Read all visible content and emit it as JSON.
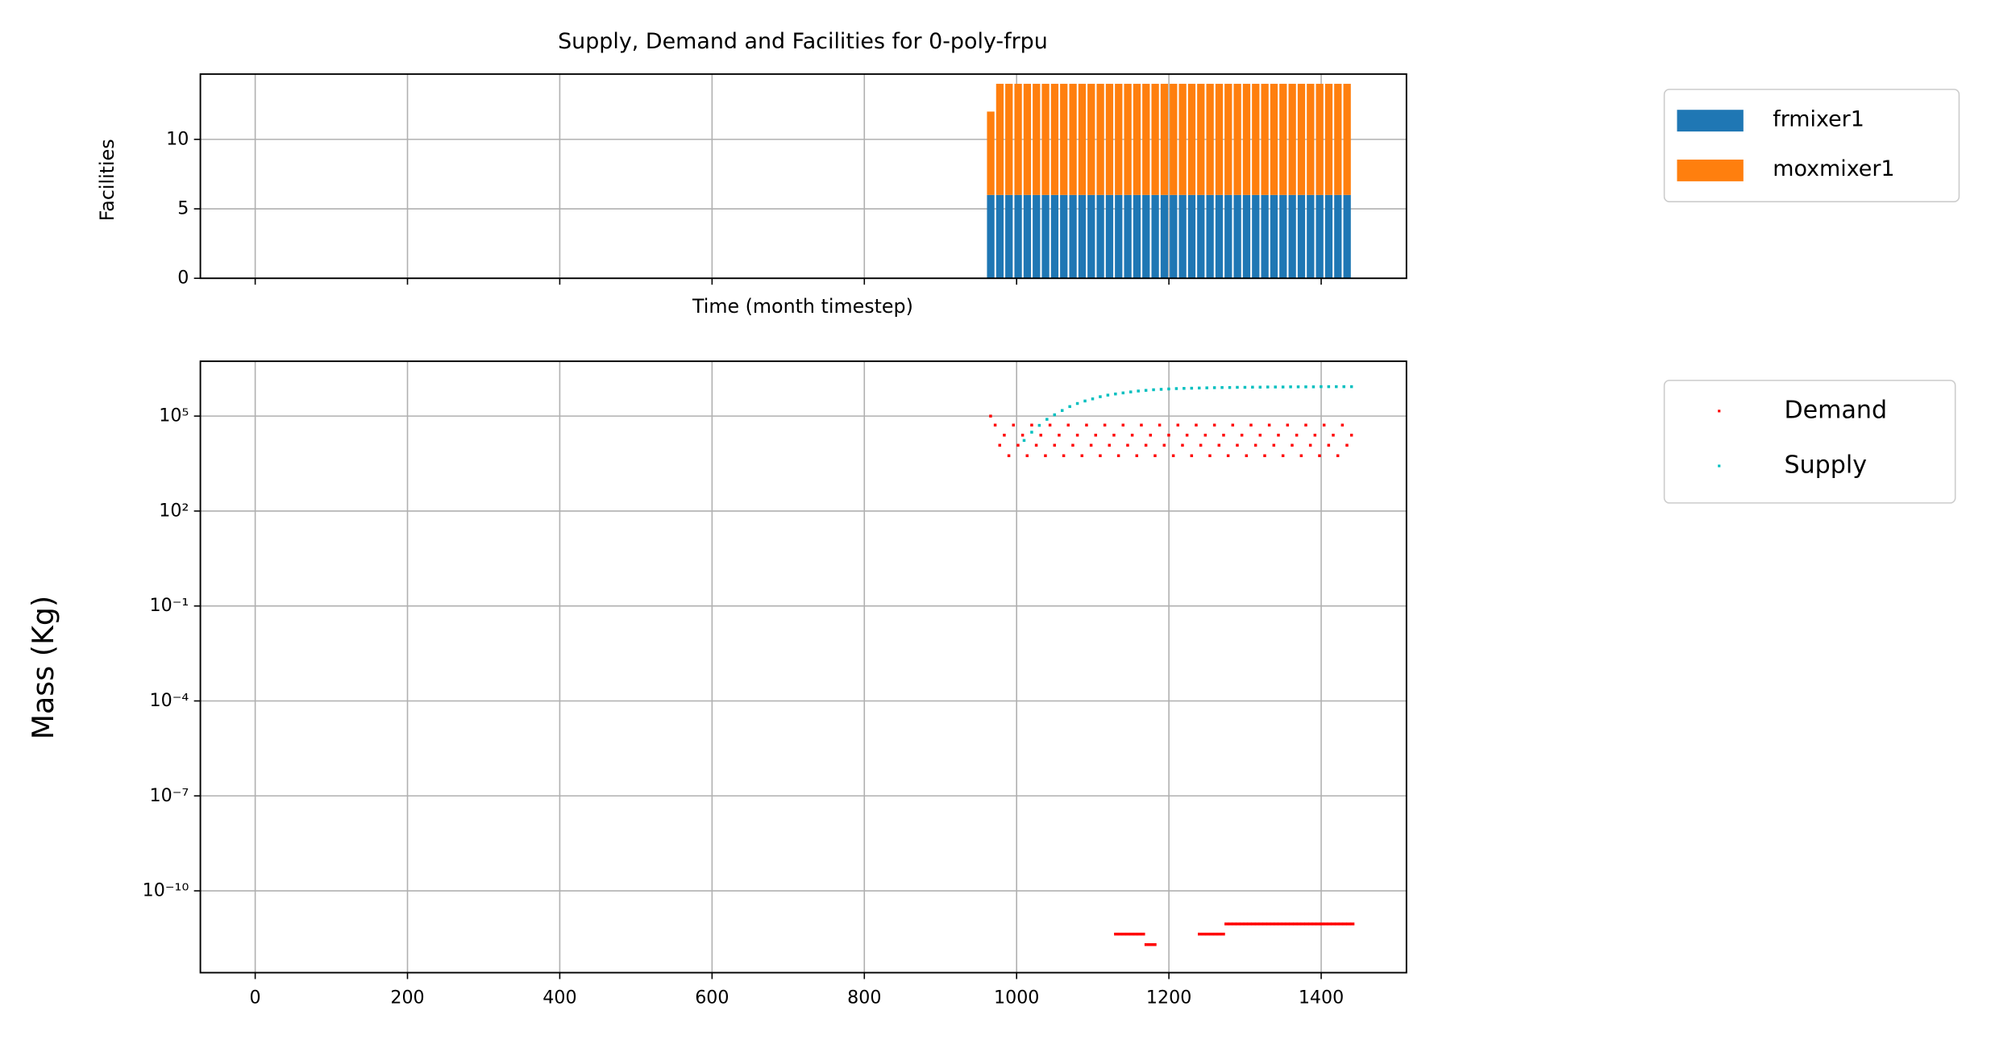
{
  "chart_data": [
    {
      "type": "bar",
      "stacked": true,
      "title": "Supply, Demand and Facilities for 0-poly-frpu",
      "xlabel": "Time (month timestep)",
      "ylabel": "Facilities",
      "x": [
        966,
        978,
        990,
        1002,
        1014,
        1026,
        1038,
        1050,
        1062,
        1074,
        1086,
        1098,
        1110,
        1122,
        1134,
        1146,
        1158,
        1170,
        1182,
        1194,
        1206,
        1218,
        1230,
        1242,
        1254,
        1266,
        1278,
        1290,
        1302,
        1314,
        1326,
        1338,
        1350,
        1362,
        1374,
        1386,
        1398,
        1410,
        1422,
        1434
      ],
      "series": [
        {
          "name": "frmixer1",
          "color": "#1f77b4",
          "values": [
            6,
            6,
            6,
            6,
            6,
            6,
            6,
            6,
            6,
            6,
            6,
            6,
            6,
            6,
            6,
            6,
            6,
            6,
            6,
            6,
            6,
            6,
            6,
            6,
            6,
            6,
            6,
            6,
            6,
            6,
            6,
            6,
            6,
            6,
            6,
            6,
            6,
            6,
            6,
            6
          ]
        },
        {
          "name": "moxmixer1",
          "color": "#ff7f0e",
          "values": [
            6,
            8,
            8,
            8,
            8,
            8,
            8,
            8,
            8,
            8,
            8,
            8,
            8,
            8,
            8,
            8,
            8,
            8,
            8,
            8,
            8,
            8,
            8,
            8,
            8,
            8,
            8,
            8,
            8,
            8,
            8,
            8,
            8,
            8,
            8,
            8,
            8,
            8,
            8,
            8
          ]
        }
      ],
      "xlim": [
        -72,
        1512
      ],
      "xticks": [
        0,
        200,
        400,
        600,
        800,
        1000,
        1200,
        1400
      ],
      "xticklabels": false,
      "ylim": [
        0,
        14.7
      ],
      "yticks": [
        0,
        5,
        10
      ],
      "grid": true,
      "legend": "outside upper right"
    },
    {
      "type": "scatter",
      "ylabel": "Mass (Kg)",
      "yscale": "log",
      "series": [
        {
          "name": "Demand",
          "color": "#ff0000",
          "x": [
            966,
            972,
            978,
            984,
            990,
            996,
            1002,
            1008,
            1014,
            1020,
            1026,
            1032,
            1038,
            1044,
            1050,
            1056,
            1062,
            1068,
            1074,
            1080,
            1086,
            1092,
            1098,
            1104,
            1110,
            1116,
            1122,
            1128,
            1134,
            1140,
            1146,
            1152,
            1158,
            1164,
            1170,
            1176,
            1182,
            1188,
            1194,
            1200,
            1206,
            1212,
            1218,
            1224,
            1230,
            1236,
            1242,
            1248,
            1254,
            1260,
            1266,
            1272,
            1278,
            1284,
            1290,
            1296,
            1302,
            1308,
            1314,
            1320,
            1326,
            1332,
            1338,
            1344,
            1350,
            1356,
            1362,
            1368,
            1374,
            1380,
            1386,
            1392,
            1398,
            1404,
            1410,
            1416,
            1422,
            1428,
            1434,
            1440,
            1130,
            1135,
            1140,
            1145,
            1150,
            1155,
            1160,
            1165,
            1170,
            1175,
            1180,
            1240,
            1245,
            1250,
            1255,
            1260,
            1265,
            1270,
            1275,
            1280,
            1285,
            1290,
            1295,
            1300,
            1305,
            1310,
            1315,
            1320,
            1325,
            1330,
            1335,
            1340,
            1345,
            1350,
            1355,
            1360,
            1365,
            1370,
            1375,
            1380,
            1385,
            1390,
            1395,
            1400,
            1405,
            1410,
            1415,
            1420,
            1425,
            1430,
            1435,
            1440
          ],
          "values": [
            100000,
            52000,
            12000,
            25000,
            5600,
            52000,
            12000,
            25000,
            5600,
            52000,
            12000,
            25000,
            5600,
            52000,
            12000,
            25000,
            5600,
            52000,
            12000,
            25000,
            5600,
            52000,
            12000,
            25000,
            5600,
            52000,
            12000,
            25000,
            5600,
            52000,
            12000,
            25000,
            5600,
            52000,
            12000,
            25000,
            5600,
            52000,
            12000,
            25000,
            5600,
            52000,
            12000,
            25000,
            5600,
            52000,
            12000,
            25000,
            5600,
            52000,
            12000,
            25000,
            5600,
            52000,
            12000,
            25000,
            5600,
            52000,
            12000,
            25000,
            5600,
            52000,
            12000,
            25000,
            5600,
            52000,
            12000,
            25000,
            5600,
            52000,
            12000,
            25000,
            5600,
            52000,
            12000,
            25000,
            5600,
            52000,
            12000,
            25000,
            4.3e-12,
            4.3e-12,
            4.3e-12,
            4.3e-12,
            4.3e-12,
            4.3e-12,
            4.3e-12,
            4.3e-12,
            2e-12,
            2e-12,
            2e-12,
            4.3e-12,
            4.3e-12,
            4.3e-12,
            4.3e-12,
            4.3e-12,
            4.3e-12,
            4.3e-12,
            9e-12,
            9e-12,
            9e-12,
            9e-12,
            9e-12,
            9e-12,
            9e-12,
            9e-12,
            9e-12,
            9e-12,
            9e-12,
            9e-12,
            9e-12,
            9e-12,
            9e-12,
            9e-12,
            9e-12,
            9e-12,
            9e-12,
            9e-12,
            9e-12,
            9e-12,
            9e-12,
            9e-12,
            9e-12,
            9e-12,
            9e-12,
            9e-12,
            9e-12,
            9e-12,
            9e-12,
            9e-12,
            9e-12,
            9e-12
          ]
        },
        {
          "name": "Supply",
          "color": "#00bfbf",
          "x": [
            1010,
            1020,
            1030,
            1040,
            1050,
            1060,
            1070,
            1080,
            1090,
            1100,
            1110,
            1120,
            1130,
            1140,
            1150,
            1160,
            1170,
            1180,
            1190,
            1200,
            1210,
            1220,
            1230,
            1240,
            1250,
            1260,
            1270,
            1280,
            1290,
            1300,
            1310,
            1320,
            1330,
            1340,
            1350,
            1360,
            1370,
            1380,
            1390,
            1400,
            1410,
            1420,
            1430,
            1440
          ],
          "values": [
            17000,
            31000,
            51000,
            79000,
            110000,
            150000,
            200000,
            250000,
            300000,
            350000,
            410000,
            460000,
            500000,
            540000,
            580000,
            620000,
            650000,
            680000,
            700000,
            720000,
            740000,
            750000,
            760000,
            770000,
            780000,
            790000,
            800000,
            800000,
            810000,
            810000,
            820000,
            820000,
            830000,
            830000,
            830000,
            840000,
            840000,
            840000,
            840000,
            850000,
            850000,
            850000,
            850000,
            850000
          ]
        }
      ],
      "xlim": [
        -72,
        1512
      ],
      "xticks": [
        0,
        200,
        400,
        600,
        800,
        1000,
        1200,
        1400
      ],
      "ylim": [
        2.6e-13,
        5400000.0
      ],
      "yticks": [
        {
          "value": 1e-10,
          "label": "10⁻¹⁰"
        },
        {
          "value": 1e-07,
          "label": "10⁻⁷"
        },
        {
          "value": 0.0001,
          "label": "10⁻⁴"
        },
        {
          "value": 0.1,
          "label": "10⁻¹"
        },
        {
          "value": 100,
          "label": "10²"
        },
        {
          "value": 100000,
          "label": "10⁵"
        }
      ],
      "grid": true,
      "legend": "outside upper right"
    }
  ]
}
